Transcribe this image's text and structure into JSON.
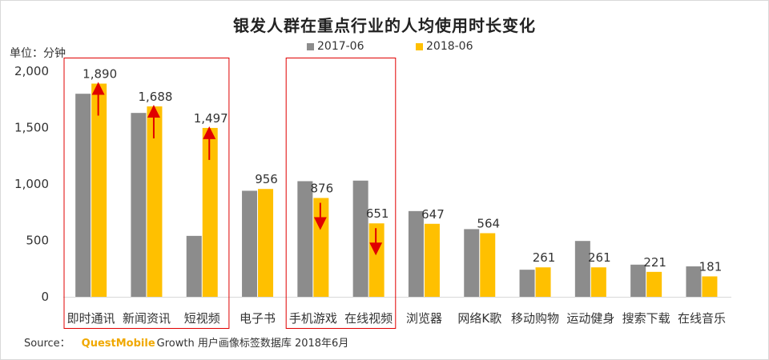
{
  "title": "银发人群在重点行业的人均使用时长变化",
  "unit_label": "单位：分钟",
  "legend": [
    {
      "name": "2017-06",
      "color": "#8c8c8c"
    },
    {
      "name": "2018-06",
      "color": "#ffc000"
    }
  ],
  "source": {
    "prefix": "Source：",
    "brand": "QuestMobile",
    "rest": "Growth 用户画像标签数据库 2018年6月"
  },
  "colors": {
    "highlight_box": "#e00000",
    "arrow": "#e00000",
    "axis": "#d9d9d9"
  },
  "chart_data": {
    "type": "bar",
    "title": "银发人群在重点行业的人均使用时长变化",
    "ylabel": "单位：分钟",
    "ylim": [
      0,
      2000
    ],
    "yticks": [
      0,
      500,
      1000,
      1500,
      2000
    ],
    "ytick_labels": [
      "0",
      "500",
      "1,000",
      "1,500",
      "2,000"
    ],
    "categories": [
      "即时通讯",
      "新闻资讯",
      "短视频",
      "电子书",
      "手机游戏",
      "在线视频",
      "浏览器",
      "网络K歌",
      "移动购物",
      "运动健身",
      "搜索下载",
      "在线音乐"
    ],
    "series": [
      {
        "name": "2017-06",
        "values": [
          1800,
          1630,
          540,
          940,
          1025,
          1030,
          760,
          600,
          240,
          495,
          285,
          270
        ]
      },
      {
        "name": "2018-06",
        "values": [
          1890,
          1688,
          1497,
          956,
          876,
          651,
          647,
          564,
          261,
          261,
          221,
          181
        ],
        "labels": [
          "1,890",
          "1,688",
          "1,497",
          "956",
          "876",
          "651",
          "647",
          "564",
          "261",
          "261",
          "221",
          "181"
        ]
      }
    ],
    "highlight_groups": [
      [
        "即时通讯",
        "新闻资讯",
        "短视频"
      ],
      [
        "手机游戏",
        "在线视频"
      ]
    ],
    "trend_arrows": [
      {
        "category": "即时通讯",
        "direction": "up"
      },
      {
        "category": "新闻资讯",
        "direction": "up"
      },
      {
        "category": "短视频",
        "direction": "up"
      },
      {
        "category": "手机游戏",
        "direction": "down"
      },
      {
        "category": "在线视频",
        "direction": "down"
      }
    ]
  }
}
